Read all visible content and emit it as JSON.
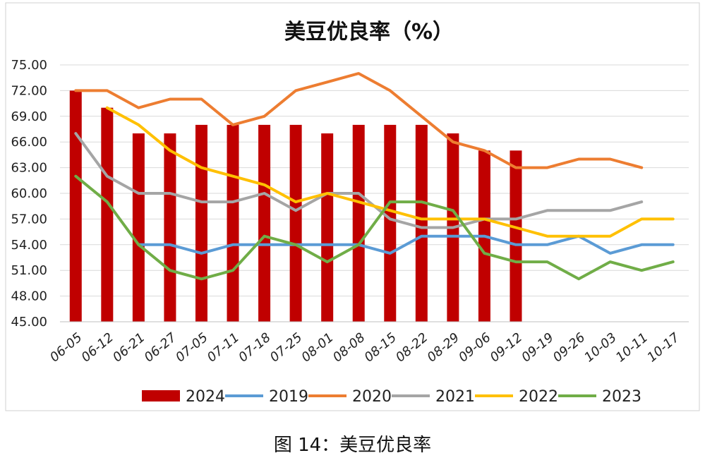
{
  "caption": "图 14：美豆优良率",
  "chart_data": {
    "type": "bar+line",
    "title": "美豆优良率（%）",
    "xlabel": "",
    "ylabel": "",
    "ylim": [
      45,
      75
    ],
    "y_ticks": [
      "45.00",
      "48.00",
      "51.00",
      "54.00",
      "57.00",
      "60.00",
      "63.00",
      "66.00",
      "69.00",
      "72.00",
      "75.00"
    ],
    "categories": [
      "06-05",
      "06-12",
      "06-21",
      "06-27",
      "07-05",
      "07-11",
      "07-18",
      "07-25",
      "08-01",
      "08-08",
      "08-15",
      "08-22",
      "08-29",
      "09-06",
      "09-12",
      "09-19",
      "09-26",
      "10-03",
      "10-11",
      "10-17"
    ],
    "grid": true,
    "legend_position": "bottom",
    "series": [
      {
        "name": "2024",
        "kind": "bar",
        "color": "#c00000",
        "values": [
          72,
          70,
          67,
          67,
          68,
          68,
          68,
          68,
          67,
          68,
          68,
          68,
          67,
          65,
          65,
          null,
          null,
          null,
          null,
          null
        ]
      },
      {
        "name": "2019",
        "kind": "line",
        "color": "#5b9bd5",
        "values": [
          null,
          null,
          54,
          54,
          53,
          54,
          54,
          54,
          54,
          54,
          53,
          55,
          55,
          55,
          54,
          54,
          55,
          53,
          54,
          54
        ]
      },
      {
        "name": "2020",
        "kind": "line",
        "color": "#ed7d31",
        "values": [
          72,
          72,
          70,
          71,
          71,
          68,
          69,
          72,
          73,
          74,
          72,
          69,
          66,
          65,
          63,
          63,
          64,
          64,
          63,
          null
        ]
      },
      {
        "name": "2021",
        "kind": "line",
        "color": "#a5a5a5",
        "values": [
          67,
          62,
          60,
          60,
          59,
          59,
          60,
          58,
          60,
          60,
          57,
          56,
          56,
          57,
          57,
          58,
          58,
          58,
          59,
          null
        ]
      },
      {
        "name": "2022",
        "kind": "line",
        "color": "#ffc000",
        "values": [
          null,
          70,
          68,
          65,
          63,
          62,
          61,
          59,
          60,
          59,
          58,
          57,
          57,
          57,
          56,
          55,
          55,
          55,
          57,
          57
        ]
      },
      {
        "name": "2023",
        "kind": "line",
        "color": "#70ad47",
        "values": [
          62,
          59,
          54,
          51,
          50,
          51,
          55,
          54,
          52,
          54,
          59,
          59,
          58,
          53,
          52,
          52,
          50,
          52,
          51,
          52
        ]
      }
    ]
  }
}
